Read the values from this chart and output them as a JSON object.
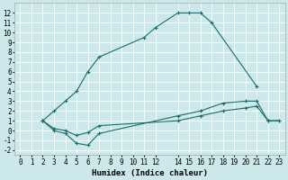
{
  "bg_color": "#cce8ea",
  "grid_color": "#ffffff",
  "line_color": "#1a6b6b",
  "marker": "+",
  "markersize": 3,
  "linewidth": 0.8,
  "xlabel": "Humidex (Indice chaleur)",
  "xlabel_fontsize": 6.5,
  "tick_fontsize": 5.5,
  "xlim": [
    -0.5,
    23.5
  ],
  "ylim": [
    -2.5,
    13.0
  ],
  "yticks": [
    -2,
    -1,
    0,
    1,
    2,
    3,
    4,
    5,
    6,
    7,
    8,
    9,
    10,
    11,
    12
  ],
  "xticks": [
    0,
    1,
    2,
    3,
    4,
    5,
    6,
    7,
    8,
    9,
    10,
    11,
    12,
    14,
    15,
    16,
    17,
    18,
    19,
    20,
    21,
    22,
    23
  ],
  "curve1_x": [
    2,
    3,
    4,
    5,
    6,
    7,
    11,
    12,
    14,
    15,
    16,
    17,
    21
  ],
  "curve1_y": [
    1,
    2,
    3,
    4,
    6,
    7.5,
    9.5,
    10.5,
    12,
    12,
    12,
    11,
    4.5
  ],
  "curve2_x": [
    2,
    3,
    4,
    5,
    6,
    7,
    14,
    16,
    18,
    20,
    21,
    22,
    23
  ],
  "curve2_y": [
    1,
    0,
    -0.3,
    -1.3,
    -1.5,
    -0.3,
    1.5,
    2.0,
    2.8,
    3.0,
    3.0,
    1.0,
    1.0
  ],
  "curve3_x": [
    2,
    3,
    4,
    5,
    6,
    7,
    14,
    16,
    18,
    20,
    21,
    22,
    23
  ],
  "curve3_y": [
    1,
    0.2,
    0.0,
    -0.5,
    -0.2,
    0.5,
    1.0,
    1.5,
    2.0,
    2.3,
    2.5,
    1.0,
    1.0
  ]
}
